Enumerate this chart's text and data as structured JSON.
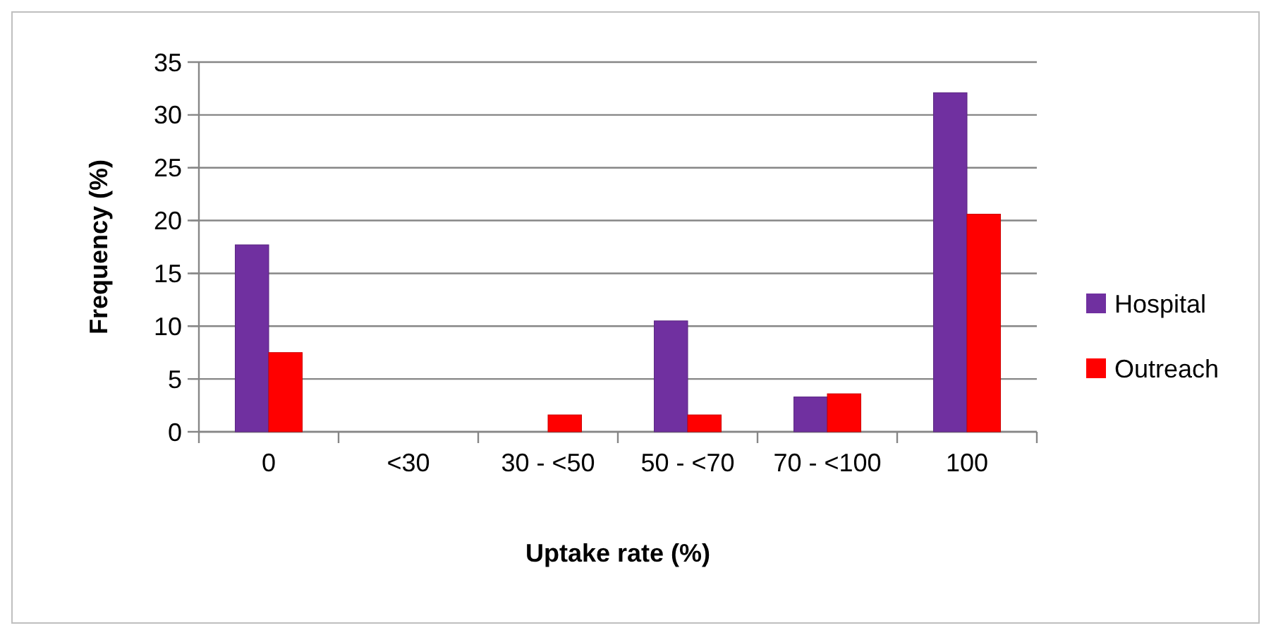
{
  "chart_data": {
    "type": "bar",
    "xlabel": "Uptake rate (%)",
    "ylabel": "Frequency (%)",
    "categories": [
      "0",
      "<30",
      "30 - <50",
      "50 - <70",
      "70 - <100",
      "100"
    ],
    "series": [
      {
        "name": "Hospital",
        "color": "#7030a0",
        "values": [
          17.7,
          0,
          0,
          10.5,
          3.3,
          32.1
        ]
      },
      {
        "name": "Outreach",
        "color": "#ff0000",
        "values": [
          7.5,
          0,
          1.6,
          1.6,
          3.6,
          20.6
        ]
      }
    ],
    "ylim": [
      0,
      35
    ],
    "yticks": [
      0,
      5,
      10,
      15,
      20,
      25,
      30,
      35
    ],
    "grid": "y",
    "legend": "right"
  }
}
